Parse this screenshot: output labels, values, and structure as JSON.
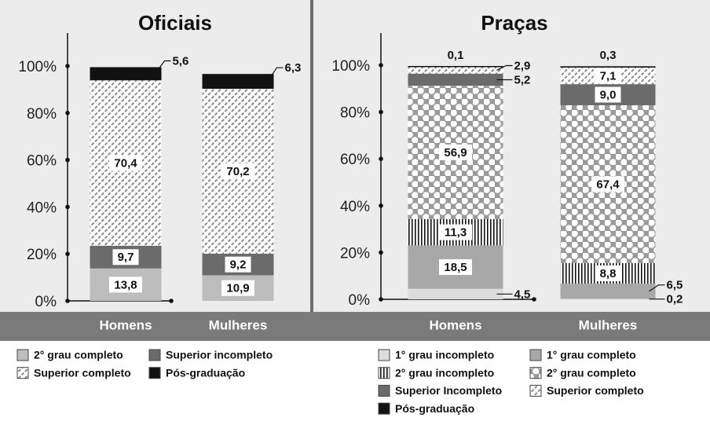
{
  "chart_data": [
    {
      "type": "stacked_bar",
      "title": "Oficiais",
      "categories": [
        "Homens",
        "Mulheres"
      ],
      "ylim": [
        0,
        100
      ],
      "yticks": [
        {
          "value": 0,
          "label": "0%"
        },
        {
          "value": 20,
          "label": "20%"
        },
        {
          "value": 40,
          "label": "40%"
        },
        {
          "value": 60,
          "label": "60%"
        },
        {
          "value": 80,
          "label": "80%"
        },
        {
          "value": 100,
          "label": "100%"
        }
      ],
      "series": [
        {
          "name": "2° grau completo",
          "color": "#bdbdbd",
          "values": [
            13.8,
            10.9
          ],
          "value_labels": [
            "13,8",
            "10,9"
          ]
        },
        {
          "name": "Superior incompleto",
          "color": "#6b6b6b",
          "values": [
            9.7,
            9.2
          ],
          "value_labels": [
            "9,7",
            "9,2"
          ]
        },
        {
          "name": "Superior completo",
          "color": "#ffffff",
          "pattern": "hatch",
          "values": [
            70.4,
            70.2
          ],
          "value_labels": [
            "70,4",
            "70,2"
          ]
        },
        {
          "name": "Pós-graduação",
          "color": "#111111",
          "values": [
            5.6,
            6.3
          ],
          "value_labels": [
            "5,6",
            "6,3"
          ]
        }
      ]
    },
    {
      "type": "stacked_bar",
      "title": "Praças",
      "categories": [
        "Homens",
        "Mulheres"
      ],
      "ylim": [
        0,
        100
      ],
      "yticks": [
        {
          "value": 0,
          "label": "0%"
        },
        {
          "value": 20,
          "label": "20%"
        },
        {
          "value": 40,
          "label": "40%"
        },
        {
          "value": 60,
          "label": "60%"
        },
        {
          "value": 80,
          "label": "80%"
        },
        {
          "value": 100,
          "label": "100%"
        }
      ],
      "series": [
        {
          "name": "1° grau incompleto",
          "color": "#dcdcdc",
          "values": [
            4.5,
            0.2
          ],
          "value_labels": [
            "4,5",
            "0,2"
          ]
        },
        {
          "name": "1° grau completo",
          "color": "#a8a8a8",
          "values": [
            18.5,
            6.5
          ],
          "value_labels": [
            "18,5",
            "6,5"
          ]
        },
        {
          "name": "2° grau incompleto",
          "color": "#ffffff",
          "pattern": "vstripes",
          "values": [
            11.3,
            8.8
          ],
          "value_labels": [
            "11,3",
            "8,8"
          ]
        },
        {
          "name": "2° grau completo",
          "color": "#9a9a9a",
          "pattern": "dots",
          "values": [
            56.9,
            67.4
          ],
          "value_labels": [
            "56,9",
            "67,4"
          ]
        },
        {
          "name": "Superior Incompleto",
          "color": "#6b6b6b",
          "values": [
            5.2,
            9.0
          ],
          "value_labels": [
            "5,2",
            "9,0"
          ]
        },
        {
          "name": "Superior completo",
          "color": "#ffffff",
          "pattern": "hatch",
          "values": [
            2.9,
            7.1
          ],
          "value_labels": [
            "2,9",
            "7,1"
          ]
        },
        {
          "name": "Pós-graduação",
          "color": "#111111",
          "values": [
            0.1,
            0.3
          ],
          "value_labels": [
            "0,1",
            "0,3"
          ]
        }
      ]
    }
  ]
}
